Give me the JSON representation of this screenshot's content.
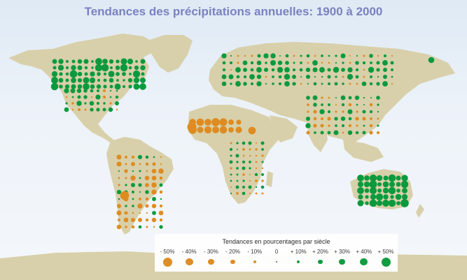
{
  "title": "Tendances des précipitations annuelles: 1900 à 2000",
  "colors": {
    "land": "#d8d0aa",
    "decrease": "#de8c22",
    "increase": "#0a9a3e",
    "title": "#7a82c0"
  },
  "legend": {
    "title": "Tendances en pourcentages par siècle",
    "items": [
      {
        "label": "- 50%",
        "value": -50
      },
      {
        "label": "- 40%",
        "value": -40
      },
      {
        "label": "- 30%",
        "value": -30
      },
      {
        "label": "- 20%",
        "value": -20
      },
      {
        "label": "- 10%",
        "value": -10
      },
      {
        "label": "0",
        "value": 0
      },
      {
        "label": "+ 10%",
        "value": 10
      },
      {
        "label": "+ 20%",
        "value": 20
      },
      {
        "label": "+ 30%",
        "value": 30
      },
      {
        "label": "+ 40%",
        "value": 40
      },
      {
        "label": "+ 50%",
        "value": 50
      }
    ]
  }
}
